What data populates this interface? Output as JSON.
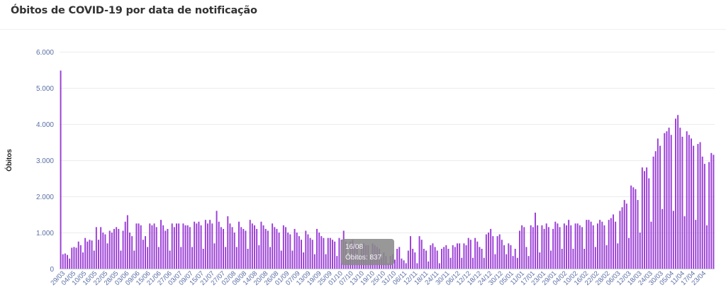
{
  "title": "Óbitos de COVID-19 por data de notificação",
  "chart_data": {
    "type": "bar",
    "title": "Óbitos de COVID-19 por data de notificação",
    "ylabel": "Óbitos",
    "xlabel": "",
    "ylim": [
      0,
      6000
    ],
    "yticks": [
      "0",
      "1.000",
      "2.000",
      "3.000",
      "4.000",
      "5.000",
      "6.000"
    ],
    "ytick_values": [
      0,
      1000,
      2000,
      3000,
      4000,
      5000,
      6000
    ],
    "bar_color": "#9b3fd6",
    "grid": "horizontal",
    "legend": "none",
    "xtick_labels": [
      "29/03",
      "04/05",
      "10/05",
      "16/05",
      "22/05",
      "28/05",
      "03/06",
      "09/06",
      "15/06",
      "21/06",
      "27/06",
      "03/07",
      "09/07",
      "15/07",
      "21/07",
      "27/07",
      "02/08",
      "08/08",
      "14/08",
      "20/08",
      "26/08",
      "01/09",
      "07/09",
      "13/09",
      "19/09",
      "25/09",
      "01/10",
      "07/10",
      "13/10",
      "19/10",
      "25/10",
      "31/10",
      "06/11",
      "12/11",
      "18/11",
      "24/11",
      "30/11",
      "06/12",
      "12/12",
      "18/12",
      "24/12",
      "30/12",
      "05/01",
      "11/01",
      "17/01",
      "23/01",
      "29/01",
      "04/02",
      "10/02",
      "16/02",
      "22/02",
      "28/02",
      "06/03",
      "12/03",
      "18/03",
      "24/03",
      "30/03",
      "05/04",
      "11/04",
      "17/04",
      "23/04"
    ],
    "values": [
      5480,
      400,
      420,
      380,
      280,
      580,
      600,
      580,
      750,
      650,
      450,
      850,
      750,
      800,
      780,
      500,
      1150,
      800,
      1150,
      1000,
      950,
      700,
      1050,
      1000,
      1100,
      1150,
      1100,
      500,
      1050,
      1300,
      1480,
      1000,
      900,
      500,
      1250,
      1250,
      1200,
      800,
      900,
      600,
      1250,
      1200,
      1250,
      1150,
      600,
      1350,
      1200,
      1050,
      1100,
      500,
      1250,
      1150,
      1250,
      1250,
      600,
      1250,
      1200,
      1200,
      1150,
      600,
      1300,
      1250,
      1300,
      1200,
      550,
      1350,
      1250,
      1350,
      1250,
      700,
      1600,
      1300,
      1150,
      1100,
      600,
      1450,
      1250,
      1150,
      1000,
      600,
      1300,
      1150,
      1100,
      1050,
      550,
      1350,
      1250,
      1200,
      1100,
      650,
      1300,
      1200,
      1100,
      1050,
      600,
      1250,
      1150,
      1100,
      1000,
      500,
      1200,
      1150,
      1000,
      950,
      500,
      1100,
      1000,
      900,
      800,
      450,
      1050,
      950,
      850,
      800,
      400,
      1100,
      1000,
      900,
      850,
      400,
      850,
      850,
      800,
      750,
      350,
      850,
      800,
      1050,
      750,
      300,
      750,
      800,
      700,
      700,
      250,
      650,
      700,
      650,
      650,
      250,
      700,
      650,
      600,
      550,
      300,
      450,
      350,
      150,
      350,
      400,
      250,
      550,
      600,
      280,
      230,
      150,
      500,
      900,
      550,
      450,
      150,
      900,
      800,
      550,
      500,
      200,
      650,
      700,
      600,
      500,
      150,
      550,
      600,
      650,
      550,
      300,
      650,
      600,
      700,
      700,
      300,
      700,
      650,
      850,
      800,
      300,
      850,
      750,
      600,
      550,
      300,
      950,
      1000,
      1100,
      900,
      400,
      900,
      950,
      800,
      650,
      400,
      700,
      650,
      350,
      550,
      300,
      1050,
      1200,
      1150,
      600,
      350,
      1200,
      1150,
      1550,
      1200,
      450,
      1200,
      1100,
      1250,
      1150,
      500,
      1100,
      1300,
      1250,
      1150,
      550,
      1250,
      1200,
      1350,
      1200,
      550,
      1250,
      1250,
      1200,
      1150,
      550,
      1350,
      1350,
      1300,
      1200,
      600,
      1250,
      1350,
      1300,
      1200,
      650,
      1350,
      1400,
      1500,
      1300,
      700,
      1600,
      1700,
      1900,
      1800,
      850,
      2300,
      2250,
      2200,
      1900,
      1000,
      2800,
      2700,
      2800,
      2500,
      1300,
      3100,
      3250,
      3600,
      3400,
      1650,
      3750,
      3800,
      3900,
      3700,
      1600,
      4150,
      4250,
      3900,
      3650,
      1450,
      3800,
      3700,
      3600,
      3400,
      1350,
      3450,
      3500,
      3100,
      2900,
      1200,
      2950,
      3200,
      3150
    ]
  },
  "tooltip": {
    "label": "16/08",
    "value": "Óbitos: 837"
  },
  "colors": {
    "bar": "#9b3fd6",
    "axis_text": "#5b6fa5",
    "grid": "#ececec",
    "title": "#333333"
  }
}
